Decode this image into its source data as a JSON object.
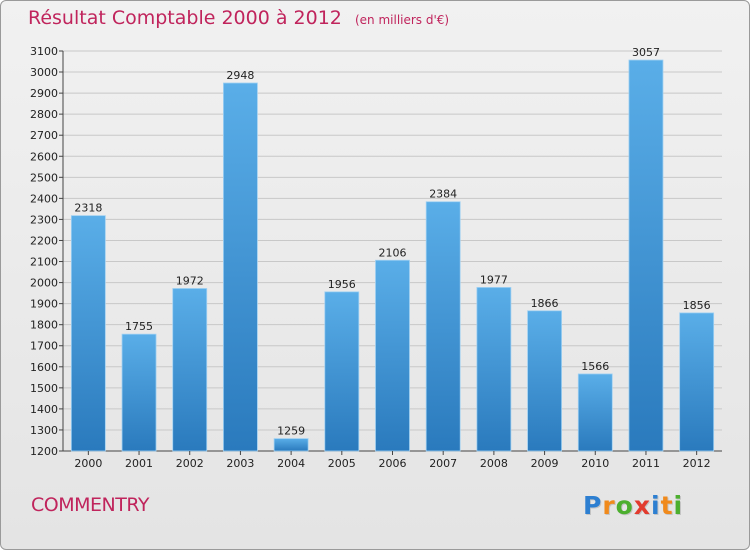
{
  "title": "Résultat Comptable 2000 à 2012",
  "subtitle": "(en milliers d'€)",
  "commune": "COMMENTRY",
  "brand": {
    "name": "Proxiti",
    "letters": [
      "P",
      "r",
      "o",
      "x",
      "i",
      "t",
      "i"
    ],
    "colors": [
      "#2d7fd1",
      "#f08a1c",
      "#4caf2e",
      "#e23b2e",
      "#2d7fd1",
      "#f08a1c",
      "#4caf2e"
    ]
  },
  "colors": {
    "title": "#c0245c",
    "bar_top": "#5aaee8",
    "bar_bottom": "#2a7abd",
    "grid": "#c8c8c8"
  },
  "chart_data": {
    "type": "bar",
    "categories": [
      "2000",
      "2001",
      "2002",
      "2003",
      "2004",
      "2005",
      "2006",
      "2007",
      "2008",
      "2009",
      "2010",
      "2011",
      "2012"
    ],
    "values": [
      2318,
      1755,
      1972,
      2948,
      1259,
      1956,
      2106,
      2384,
      1977,
      1866,
      1566,
      3057,
      1856
    ],
    "ylim": [
      1200,
      3100
    ],
    "yticks": [
      1200,
      1300,
      1400,
      1500,
      1600,
      1700,
      1800,
      1900,
      2000,
      2100,
      2200,
      2300,
      2400,
      2500,
      2600,
      2700,
      2800,
      2900,
      3000,
      3100
    ],
    "grid": true,
    "data_labels": true
  }
}
